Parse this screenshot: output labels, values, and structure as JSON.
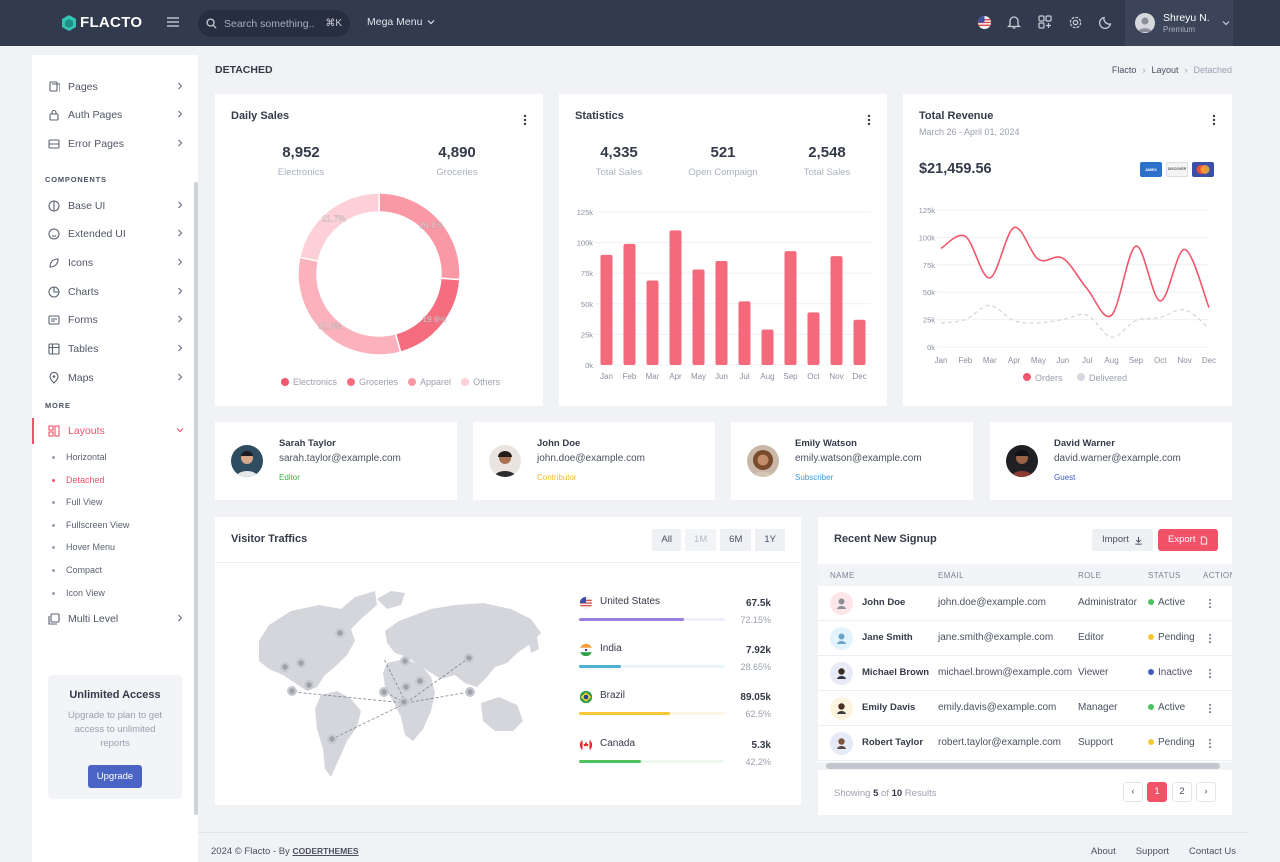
{
  "topbar": {
    "brand": "FLACTO",
    "search_placeholder": "Search something..",
    "search_shortcut": "⌘K",
    "mega_menu": "Mega Menu",
    "user_name": "Shreyu N.",
    "user_role": "Premium"
  },
  "sidebar": {
    "items_top": [
      {
        "label": "Pages"
      },
      {
        "label": "Auth Pages"
      },
      {
        "label": "Error Pages"
      }
    ],
    "components_heading": "COMPONENTS",
    "components": [
      {
        "label": "Base UI"
      },
      {
        "label": "Extended UI"
      },
      {
        "label": "Icons"
      },
      {
        "label": "Charts"
      },
      {
        "label": "Forms"
      },
      {
        "label": "Tables"
      },
      {
        "label": "Maps"
      }
    ],
    "more_heading": "MORE",
    "layouts_label": "Layouts",
    "layout_subitems": [
      "Horizontal",
      "Detached",
      "Full View",
      "Fullscreen View",
      "Hover Menu",
      "Compact",
      "Icon View"
    ],
    "multi_level": "Multi Level",
    "upgrade": {
      "title": "Unlimited Access",
      "text": "Upgrade to plan to get access to unlimited reports",
      "button": "Upgrade"
    }
  },
  "page": {
    "title": "DETACHED",
    "breadcrumb": [
      "Flacto",
      "Layout",
      "Detached"
    ]
  },
  "daily_sales": {
    "title": "Daily Sales",
    "stats": [
      {
        "value": "8,952",
        "label": "Electronics"
      },
      {
        "value": "4,890",
        "label": "Groceries"
      }
    ]
  },
  "statistics": {
    "title": "Statistics",
    "stats": [
      {
        "value": "4,335",
        "label": "Total Sales"
      },
      {
        "value": "521",
        "label": "Open Compaign"
      },
      {
        "value": "2,548",
        "label": "Total Sales"
      }
    ]
  },
  "revenue": {
    "title": "Total Revenue",
    "subtitle": "March 26 - April 01, 2024",
    "amount": "$21,459.56",
    "cards": [
      "AMEX",
      "DISCOVER"
    ]
  },
  "chart_data": [
    {
      "type": "pie",
      "title": "Daily Sales",
      "categories": [
        "Electronics",
        "Groceries",
        "Apparel",
        "Others"
      ],
      "values": [
        26.1,
        19.6,
        32.6,
        21.7
      ],
      "labels": [
        "26.1%",
        "19.6%",
        "32.6%",
        "21.7%"
      ],
      "colors": [
        "#fb98a6",
        "#f66d80",
        "#fbb2bd",
        "#fdd0d7"
      ]
    },
    {
      "type": "bar",
      "title": "Statistics",
      "categories": [
        "Jan",
        "Feb",
        "Mar",
        "Apr",
        "May",
        "Jun",
        "Jul",
        "Aug",
        "Sep",
        "Oct",
        "Nov",
        "Dec"
      ],
      "values": [
        90,
        99,
        69,
        110,
        78,
        85,
        52,
        29,
        93,
        43,
        89,
        37
      ],
      "yticks": [
        "0k",
        "25k",
        "50k",
        "75k",
        "100k",
        "125k"
      ],
      "ylim": [
        0,
        125
      ]
    },
    {
      "type": "line",
      "title": "Total Revenue",
      "categories": [
        "Jan",
        "Feb",
        "Mar",
        "Apr",
        "May",
        "Jun",
        "Jul",
        "Aug",
        "Sep",
        "Oct",
        "Nov",
        "Dec"
      ],
      "series": [
        {
          "name": "Orders",
          "values": [
            90,
            101,
            63,
            109,
            80,
            81,
            53,
            29,
            92,
            42,
            89,
            36
          ],
          "color": "#f2566c"
        },
        {
          "name": "Delivered",
          "values": [
            22,
            25,
            38,
            24,
            22,
            25,
            29,
            9,
            24,
            27,
            34,
            17
          ],
          "color": "#d5d8de"
        }
      ],
      "yticks": [
        "0k",
        "25k",
        "50k",
        "75k",
        "100k",
        "125k"
      ],
      "ylim": [
        0,
        125
      ]
    }
  ],
  "contacts": [
    {
      "name": "Sarah Taylor",
      "email": "sarah.taylor@example.com",
      "role": "Editor",
      "role_color": "#3cb54a"
    },
    {
      "name": "John Doe",
      "email": "john.doe@example.com",
      "role": "Contributor",
      "role_color": "#f5b82e"
    },
    {
      "name": "Emily Watson",
      "email": "emily.watson@example.com",
      "role": "Subscriber",
      "role_color": "#3a9ad9"
    },
    {
      "name": "David Warner",
      "email": "david.warner@example.com",
      "role": "Guest",
      "role_color": "#3f5bc1"
    }
  ],
  "visitors": {
    "title": "Visitor Traffics",
    "ranges": [
      "All",
      "1M",
      "6M",
      "1Y"
    ],
    "countries": [
      {
        "name": "United States",
        "value": "67.5k",
        "pct": "72.15%",
        "fill": 0.7215,
        "color": "#9b7fe0",
        "bg": "#f1eefb"
      },
      {
        "name": "India",
        "value": "7.92k",
        "pct": "28.65%",
        "fill": 0.2865,
        "color": "#4fb0d8",
        "bg": "#ebf6fb"
      },
      {
        "name": "Brazil",
        "value": "89.05k",
        "pct": "62.5%",
        "fill": 0.625,
        "color": "#f7c836",
        "bg": "#fdf8e6"
      },
      {
        "name": "Canada",
        "value": "5.3k",
        "pct": "42.2%",
        "fill": 0.422,
        "color": "#4cc25f",
        "bg": "#edf8ef"
      }
    ]
  },
  "signup": {
    "title": "Recent New Signup",
    "import_label": "Import",
    "export_label": "Export",
    "columns": [
      "NAME",
      "EMAIL",
      "ROLE",
      "STATUS",
      "ACTION"
    ],
    "rows": [
      {
        "name": "John Doe",
        "email": "john.doe@example.com",
        "role": "Administrator",
        "status": "Active",
        "status_color": "#4cc25f",
        "av_bg": "#fde6e9"
      },
      {
        "name": "Jane Smith",
        "email": "jane.smith@example.com",
        "role": "Editor",
        "status": "Pending",
        "status_color": "#f7c836",
        "av_bg": "#e3f2fb"
      },
      {
        "name": "Michael Brown",
        "email": "michael.brown@example.com",
        "role": "Viewer",
        "status": "Inactive",
        "status_color": "#3f5bc1",
        "av_bg": "#e8ebf7"
      },
      {
        "name": "Emily Davis",
        "email": "emily.davis@example.com",
        "role": "Manager",
        "status": "Active",
        "status_color": "#4cc25f",
        "av_bg": "#fdf4e0"
      },
      {
        "name": "Robert Taylor",
        "email": "robert.taylor@example.com",
        "role": "Support",
        "status": "Pending",
        "status_color": "#f7c836",
        "av_bg": "#e6e9f6"
      }
    ],
    "showing_prefix": "Showing ",
    "showing_count": "5",
    "showing_mid": " of ",
    "showing_total": "10",
    "showing_suffix": " Results",
    "pages": [
      "1",
      "2"
    ]
  },
  "footer": {
    "copyright": "2024 © Flacto - By ",
    "brand": "CODERTHEMES",
    "links": [
      "About",
      "Support",
      "Contact Us"
    ]
  },
  "colors": {
    "accent": "#f25268",
    "primary": "#4a64c6",
    "topbar": "#323a4e"
  }
}
